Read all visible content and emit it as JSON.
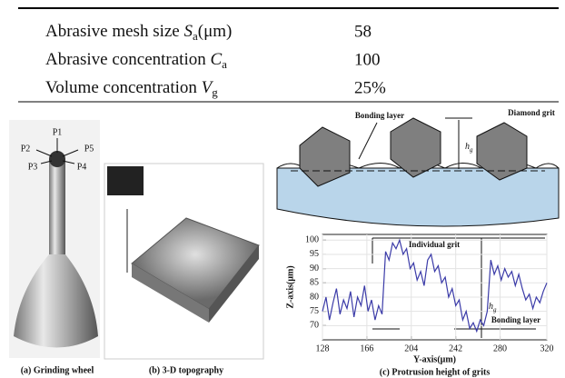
{
  "table": {
    "rows": [
      {
        "name": "Abrasive mesh size ",
        "symbol": "S",
        "sub": "a",
        "unit": "(μm)",
        "value": "58"
      },
      {
        "name": "Abrasive concentration ",
        "symbol": "C",
        "sub": "a",
        "value": "100"
      },
      {
        "name": "Volume concentration ",
        "symbol": "V",
        "sub": "g",
        "value": "25%"
      }
    ]
  },
  "figure": {
    "panel_a": {
      "points": [
        "P1",
        "P2",
        "P3",
        "P4",
        "P5"
      ],
      "caption": "(a) Grinding wheel"
    },
    "panel_b": {
      "caption": "(b) 3-D topography"
    },
    "panel_c": {
      "schematic": {
        "bonding_label": "Bonding layer",
        "grit_label": "Diamond grit",
        "height_symbol": "h",
        "height_sub": "g"
      },
      "plot": {
        "type": "line",
        "x_label": "Y-axis(μm)",
        "y_label": "Z-axis(μm)",
        "xlim": [
          128,
          320
        ],
        "ylim": [
          65,
          102
        ],
        "xticks": [
          128,
          166,
          204,
          242,
          280,
          320
        ],
        "yticks": [
          70,
          75,
          80,
          85,
          90,
          95,
          100
        ],
        "color": "#3b3ba8",
        "x": [
          128,
          131,
          134,
          137,
          140,
          143,
          146,
          149,
          152,
          155,
          158,
          161,
          164,
          167,
          170,
          173,
          176,
          179,
          182,
          185,
          188,
          191,
          194,
          197,
          200,
          203,
          206,
          209,
          212,
          215,
          218,
          221,
          224,
          227,
          230,
          233,
          236,
          239,
          242,
          245,
          248,
          251,
          254,
          257,
          260,
          263,
          266,
          269,
          272,
          275,
          278,
          281,
          284,
          287,
          290,
          293,
          296,
          299,
          302,
          305,
          308,
          311,
          314,
          317,
          320
        ],
        "values": [
          75,
          80,
          72,
          78,
          83,
          74,
          79,
          76,
          82,
          73,
          80,
          77,
          84,
          75,
          79,
          72,
          77,
          74,
          96,
          93,
          99,
          97,
          100,
          95,
          97,
          90,
          92,
          86,
          89,
          84,
          93,
          95,
          89,
          91,
          85,
          87,
          80,
          83,
          77,
          79,
          72,
          75,
          69,
          71,
          68,
          72,
          70,
          75,
          93,
          88,
          91,
          86,
          90,
          87,
          89,
          84,
          88,
          83,
          79,
          81,
          76,
          80,
          78,
          82,
          85
        ],
        "annotations": {
          "grit": "Individual grit",
          "bonding": "Bonding layer",
          "height_symbol": "h",
          "height_sub": "g"
        }
      },
      "caption": "(c) Protrusion height of grits"
    }
  }
}
